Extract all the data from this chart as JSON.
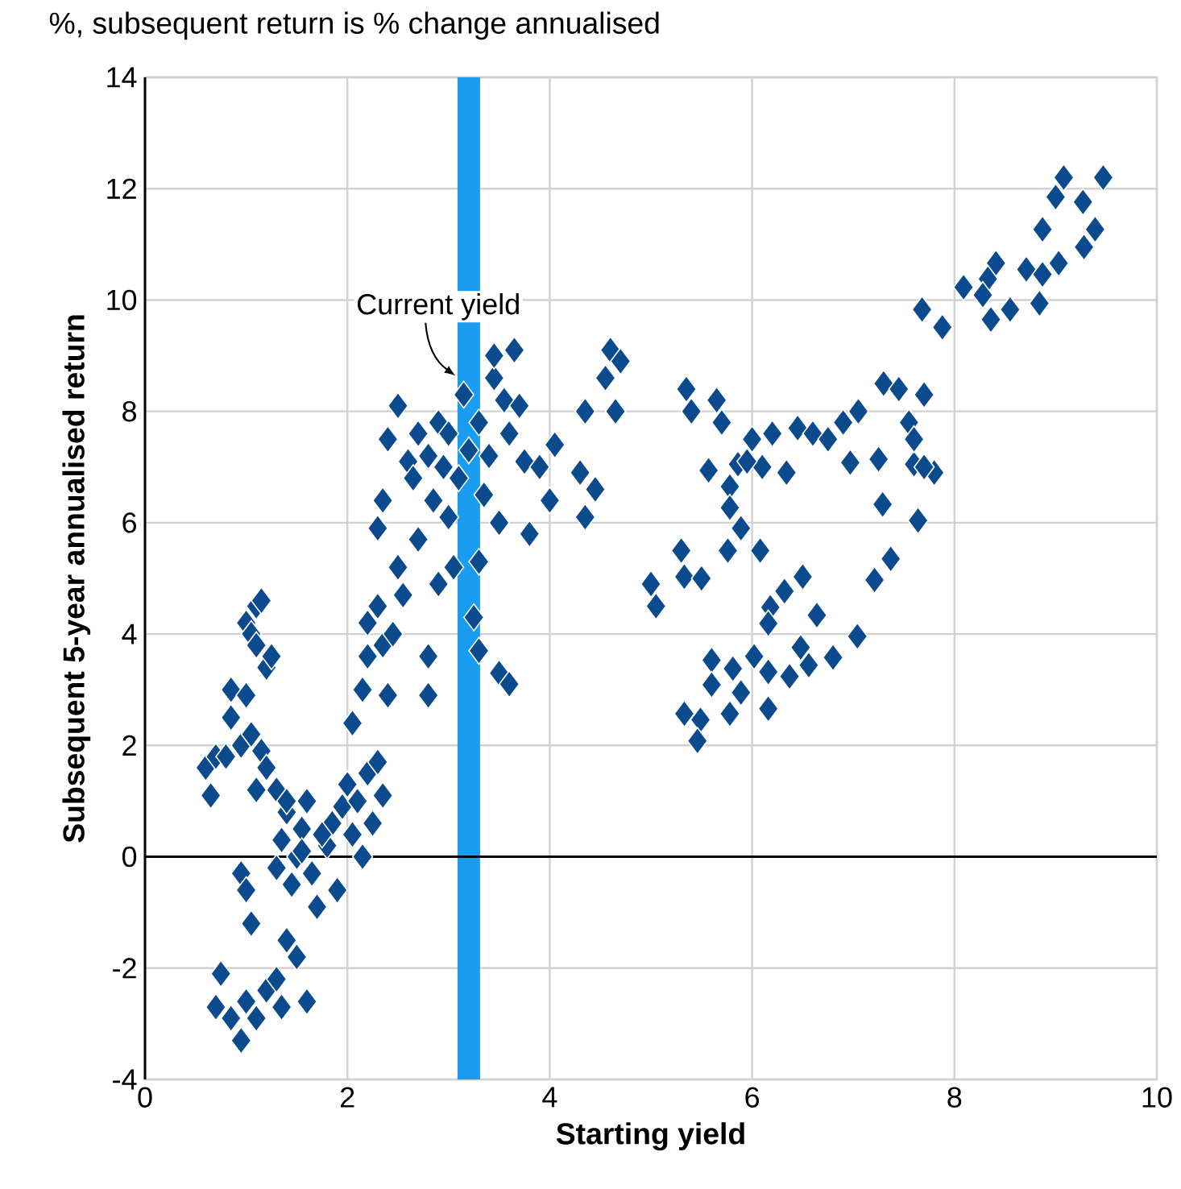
{
  "chart_data": {
    "type": "scatter",
    "title": "%, subsequent return is % change annualised",
    "xlabel": "Starting yield",
    "ylabel": "Subsequent 5-year annualised return",
    "xlim": [
      0,
      10
    ],
    "ylim": [
      -4,
      14
    ],
    "xticks": [
      0,
      2,
      4,
      6,
      8,
      10
    ],
    "yticks": [
      -4,
      -2,
      0,
      2,
      4,
      6,
      8,
      10,
      12,
      14
    ],
    "grid": true,
    "marker": "diamond",
    "ref_lines": [
      {
        "axis": "x",
        "value": 3.2,
        "label": "Current yield",
        "color": "#1a9cf0"
      },
      {
        "axis": "y",
        "value": 0,
        "color": "#000000"
      }
    ],
    "series": [
      {
        "color": "#0b4a8c",
        "x": [
          0.6,
          0.65,
          0.7,
          0.8,
          0.85,
          0.85,
          0.95,
          1.0,
          1.05,
          1.1,
          1.15,
          1.1,
          1.2,
          1.25,
          1.0,
          1.05,
          1.15,
          1.2,
          1.3,
          1.1,
          0.95,
          1.0,
          1.05,
          0.75,
          0.7,
          0.85,
          0.95,
          1.0,
          1.1,
          1.2,
          1.3,
          1.35,
          1.4,
          1.5,
          1.6,
          1.3,
          1.35,
          1.4,
          1.45,
          1.5,
          1.55,
          1.6,
          1.65,
          1.7,
          1.8,
          1.85,
          1.9,
          1.95,
          2.0,
          2.05,
          2.1,
          2.15,
          2.2,
          2.25,
          2.3,
          2.35,
          1.4,
          1.55,
          1.75,
          2.05,
          2.15,
          2.2,
          2.2,
          2.3,
          2.35,
          2.4,
          2.45,
          2.5,
          2.55,
          2.3,
          2.35,
          2.4,
          2.5,
          2.6,
          2.65,
          2.7,
          2.8,
          2.85,
          2.9,
          2.95,
          2.9,
          2.8,
          2.8,
          3.05,
          3.0,
          3.1,
          3.15,
          3.2,
          3.25,
          3.3,
          3.3,
          3.35,
          3.4,
          3.45,
          3.45,
          3.55,
          3.6,
          3.65,
          3.7,
          3.75,
          3.8,
          3.5,
          3.5,
          3.6,
          3.9,
          4.0,
          4.05,
          4.3,
          4.35,
          4.35,
          4.45,
          4.55,
          4.6,
          4.65,
          4.7,
          3.0,
          2.7,
          3.3,
          5.57,
          5.86,
          6.34,
          5.78,
          5.78,
          5.89,
          5.76,
          6.08,
          5.33,
          6.5,
          6.32,
          6.18,
          6.64,
          6.16,
          7.04,
          6.48,
          5.6,
          6.02,
          6.8,
          5.81,
          6.16,
          6.37,
          5.6,
          5.89,
          6.56,
          5.78,
          6.16,
          5.33,
          5.49,
          5.46,
          7.29,
          7.64,
          7.37,
          7.21,
          7.8,
          6.97,
          7.25,
          7.6,
          5.35,
          5.4,
          5.65,
          5.7,
          5.0,
          5.05,
          5.3,
          5.5,
          6.0,
          6.2,
          6.45,
          6.6,
          6.75,
          6.9,
          7.05,
          7.3,
          7.45,
          7.55,
          7.6,
          7.7,
          7.7,
          6.1,
          5.95,
          9.08,
          9.47,
          9.0,
          9.27,
          8.87,
          9.39,
          9.28,
          9.03,
          8.71,
          8.87,
          8.41,
          8.33,
          8.09,
          8.28,
          7.68,
          7.88,
          8.36,
          8.55,
          8.84
        ],
        "values": [
          1.6,
          1.1,
          1.8,
          1.8,
          3.0,
          2.5,
          2.0,
          4.2,
          4.0,
          4.5,
          4.6,
          3.8,
          3.4,
          3.6,
          2.9,
          2.2,
          1.9,
          1.6,
          1.2,
          1.2,
          -0.3,
          -0.6,
          -1.2,
          -2.1,
          -2.7,
          -2.9,
          -3.3,
          -2.6,
          -2.9,
          -2.4,
          -2.2,
          -2.7,
          -1.5,
          -1.8,
          -2.6,
          -0.2,
          0.3,
          0.8,
          -0.5,
          0.0,
          0.5,
          1.0,
          -0.3,
          -0.9,
          0.2,
          0.6,
          -0.6,
          0.9,
          1.3,
          0.4,
          1.0,
          0.0,
          1.5,
          0.6,
          1.7,
          1.1,
          1.0,
          0.1,
          0.4,
          2.4,
          3.0,
          3.6,
          4.2,
          4.5,
          3.8,
          2.9,
          4.0,
          5.2,
          4.7,
          5.9,
          6.4,
          7.5,
          8.1,
          7.1,
          6.8,
          5.7,
          7.2,
          6.4,
          7.8,
          7.0,
          4.9,
          3.6,
          2.9,
          5.2,
          6.1,
          6.8,
          8.3,
          7.3,
          4.3,
          3.7,
          5.3,
          6.5,
          7.2,
          8.6,
          9.0,
          8.2,
          7.6,
          9.1,
          8.1,
          7.1,
          5.8,
          6.0,
          3.3,
          3.1,
          7.0,
          6.4,
          7.4,
          6.9,
          6.1,
          8.0,
          6.6,
          8.6,
          9.1,
          8.0,
          8.9,
          7.6,
          7.6,
          7.8,
          6.94,
          7.05,
          6.9,
          6.65,
          6.27,
          5.9,
          5.5,
          5.5,
          5.03,
          5.03,
          4.77,
          4.48,
          4.34,
          4.19,
          3.96,
          3.76,
          3.53,
          3.6,
          3.58,
          3.38,
          3.32,
          3.24,
          3.09,
          2.95,
          3.44,
          2.57,
          2.66,
          2.57,
          2.46,
          2.08,
          6.33,
          6.04,
          5.35,
          4.97,
          6.9,
          7.08,
          7.14,
          7.05,
          8.4,
          8.0,
          8.2,
          7.8,
          4.9,
          4.5,
          5.5,
          5.0,
          7.5,
          7.6,
          7.7,
          7.6,
          7.5,
          7.8,
          8.0,
          8.5,
          8.4,
          7.8,
          7.5,
          8.3,
          7.0,
          7.0,
          7.1,
          12.2,
          12.2,
          11.85,
          11.76,
          11.27,
          11.27,
          10.95,
          10.66,
          10.55,
          10.46,
          10.66,
          10.38,
          10.23,
          10.09,
          9.83,
          9.51,
          9.65,
          9.83,
          9.94
        ]
      }
    ]
  }
}
